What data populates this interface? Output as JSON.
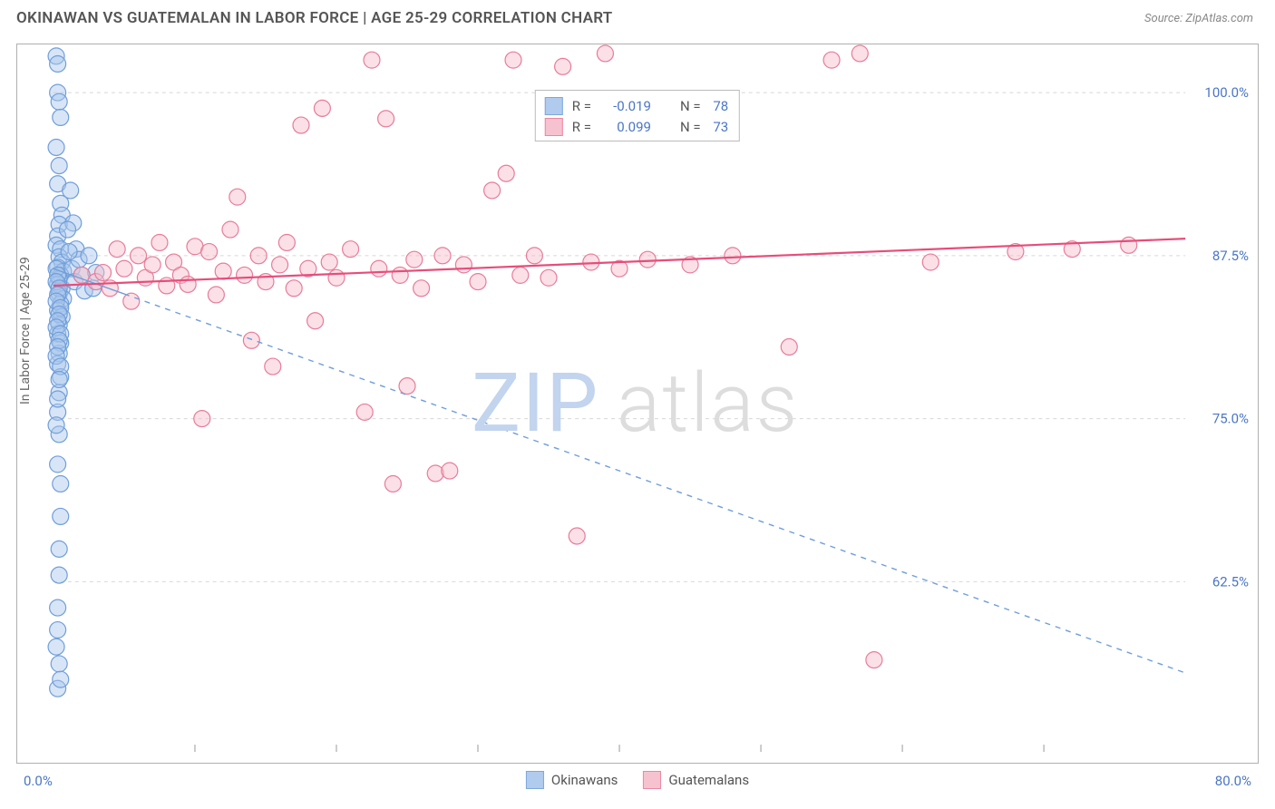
{
  "header": {
    "title": "OKINAWAN VS GUATEMALAN IN LABOR FORCE | AGE 25-29 CORRELATION CHART",
    "source": "Source: ZipAtlas.com"
  },
  "watermark": {
    "part1": "ZIP",
    "part2": "atlas"
  },
  "chart": {
    "type": "scatter",
    "y_axis_title": "In Labor Force | Age 25-29",
    "xlim": [
      0,
      80
    ],
    "ylim": [
      50,
      103
    ],
    "x_axis": {
      "label_min": "0.0%",
      "label_max": "80.0%",
      "tick_positions": [
        10,
        20,
        30,
        40,
        50,
        60,
        70
      ]
    },
    "y_axis": {
      "ticks": [
        {
          "v": 62.5,
          "label": "62.5%"
        },
        {
          "v": 75.0,
          "label": "75.0%"
        },
        {
          "v": 87.5,
          "label": "87.5%"
        },
        {
          "v": 100.0,
          "label": "100.0%"
        }
      ]
    },
    "grid_color": "#d8d8d8",
    "background_color": "#ffffff",
    "marker_radius": 9,
    "marker_stroke_width": 1.2,
    "series": [
      {
        "key": "okinawans",
        "name": "Okinawans",
        "fill": "#a8c6ec",
        "stroke": "#6f9edb",
        "fill_opacity": 0.45,
        "R": "-0.019",
        "N": "78",
        "trend": {
          "x1": 0,
          "y1": 86.5,
          "x2": 80,
          "y2": 55.5,
          "color": "#6f9edb",
          "dash": "6 6",
          "width": 1.4,
          "solid_until_x": 5
        },
        "points": [
          [
            0.2,
            102.8
          ],
          [
            0.3,
            102.2
          ],
          [
            0.3,
            100.0
          ],
          [
            0.4,
            99.3
          ],
          [
            0.5,
            98.1
          ],
          [
            0.2,
            95.8
          ],
          [
            0.4,
            94.4
          ],
          [
            0.3,
            93.0
          ],
          [
            0.5,
            91.5
          ],
          [
            0.6,
            90.6
          ],
          [
            0.4,
            89.9
          ],
          [
            0.3,
            89.0
          ],
          [
            0.2,
            88.3
          ],
          [
            0.5,
            88.0
          ],
          [
            0.4,
            87.4
          ],
          [
            0.6,
            87.0
          ],
          [
            0.3,
            86.6
          ],
          [
            0.7,
            86.3
          ],
          [
            0.5,
            86.0
          ],
          [
            0.4,
            85.7
          ],
          [
            0.3,
            85.3
          ],
          [
            0.6,
            85.0
          ],
          [
            0.4,
            84.6
          ],
          [
            0.7,
            84.2
          ],
          [
            0.5,
            83.8
          ],
          [
            0.3,
            83.3
          ],
          [
            0.6,
            82.8
          ],
          [
            0.4,
            82.2
          ],
          [
            0.3,
            81.5
          ],
          [
            0.5,
            80.8
          ],
          [
            0.4,
            80.0
          ],
          [
            0.3,
            79.2
          ],
          [
            0.5,
            78.2
          ],
          [
            0.4,
            77.0
          ],
          [
            0.3,
            75.5
          ],
          [
            0.4,
            73.8
          ],
          [
            0.3,
            71.5
          ],
          [
            0.5,
            67.5
          ],
          [
            0.4,
            63.0
          ],
          [
            0.3,
            58.8
          ],
          [
            0.4,
            56.2
          ],
          [
            0.3,
            54.3
          ],
          [
            1.2,
            92.5
          ],
          [
            1.4,
            90.0
          ],
          [
            1.6,
            88.0
          ],
          [
            1.3,
            86.5
          ],
          [
            1.5,
            85.5
          ],
          [
            1.8,
            87.2
          ],
          [
            2.0,
            86.0
          ],
          [
            2.2,
            84.8
          ],
          [
            2.5,
            87.5
          ],
          [
            2.8,
            85.0
          ],
          [
            3.0,
            86.2
          ],
          [
            0.2,
            86.5
          ],
          [
            0.3,
            86.0
          ],
          [
            0.2,
            85.5
          ],
          [
            0.4,
            85.0
          ],
          [
            0.3,
            84.5
          ],
          [
            0.2,
            84.0
          ],
          [
            0.5,
            83.5
          ],
          [
            0.4,
            83.0
          ],
          [
            0.3,
            82.5
          ],
          [
            0.2,
            82.0
          ],
          [
            0.5,
            81.5
          ],
          [
            0.4,
            81.0
          ],
          [
            0.3,
            80.5
          ],
          [
            0.2,
            79.8
          ],
          [
            0.5,
            79.0
          ],
          [
            0.4,
            78.0
          ],
          [
            0.3,
            76.5
          ],
          [
            0.2,
            74.5
          ],
          [
            0.5,
            70.0
          ],
          [
            0.4,
            65.0
          ],
          [
            0.3,
            60.5
          ],
          [
            0.2,
            57.5
          ],
          [
            0.5,
            55.0
          ],
          [
            1.0,
            89.5
          ],
          [
            1.1,
            87.8
          ]
        ]
      },
      {
        "key": "guatemalans",
        "name": "Guatemalans",
        "fill": "#f7bcca",
        "stroke": "#e87b9a",
        "fill_opacity": 0.45,
        "R": "0.099",
        "N": "73",
        "trend": {
          "x1": 0,
          "y1": 85.2,
          "x2": 80,
          "y2": 88.8,
          "color": "#e84c7a",
          "dash": "none",
          "width": 2.2
        },
        "points": [
          [
            2.0,
            86.0
          ],
          [
            3.0,
            85.5
          ],
          [
            3.5,
            86.2
          ],
          [
            4.0,
            85.0
          ],
          [
            4.5,
            88.0
          ],
          [
            5.0,
            86.5
          ],
          [
            5.5,
            84.0
          ],
          [
            6.0,
            87.5
          ],
          [
            6.5,
            85.8
          ],
          [
            7.0,
            86.8
          ],
          [
            7.5,
            88.5
          ],
          [
            8.0,
            85.2
          ],
          [
            8.5,
            87.0
          ],
          [
            9.0,
            86.0
          ],
          [
            9.5,
            85.3
          ],
          [
            10.0,
            88.2
          ],
          [
            10.5,
            75.0
          ],
          [
            11.0,
            87.8
          ],
          [
            11.5,
            84.5
          ],
          [
            12.0,
            86.3
          ],
          [
            12.5,
            89.5
          ],
          [
            13.0,
            92.0
          ],
          [
            13.5,
            86.0
          ],
          [
            14.0,
            81.0
          ],
          [
            14.5,
            87.5
          ],
          [
            15.0,
            85.5
          ],
          [
            15.5,
            79.0
          ],
          [
            16.0,
            86.8
          ],
          [
            16.5,
            88.5
          ],
          [
            17.0,
            85.0
          ],
          [
            17.5,
            97.5
          ],
          [
            18.0,
            86.5
          ],
          [
            18.5,
            82.5
          ],
          [
            19.0,
            98.8
          ],
          [
            19.5,
            87.0
          ],
          [
            20.0,
            85.8
          ],
          [
            21.0,
            88.0
          ],
          [
            22.0,
            75.5
          ],
          [
            22.5,
            102.5
          ],
          [
            23.0,
            86.5
          ],
          [
            23.5,
            98.0
          ],
          [
            24.0,
            70.0
          ],
          [
            24.5,
            86.0
          ],
          [
            25.0,
            77.5
          ],
          [
            25.5,
            87.2
          ],
          [
            26.0,
            85.0
          ],
          [
            27.0,
            70.8
          ],
          [
            27.5,
            87.5
          ],
          [
            28.0,
            71.0
          ],
          [
            29.0,
            86.8
          ],
          [
            30.0,
            85.5
          ],
          [
            31.0,
            92.5
          ],
          [
            32.0,
            93.8
          ],
          [
            32.5,
            102.5
          ],
          [
            33.0,
            86.0
          ],
          [
            34.0,
            87.5
          ],
          [
            35.0,
            85.8
          ],
          [
            36.0,
            102.0
          ],
          [
            37.0,
            66.0
          ],
          [
            38.0,
            87.0
          ],
          [
            39.0,
            103.0
          ],
          [
            40.0,
            86.5
          ],
          [
            42.0,
            87.2
          ],
          [
            45.0,
            86.8
          ],
          [
            48.0,
            87.5
          ],
          [
            52.0,
            80.5
          ],
          [
            55.0,
            102.5
          ],
          [
            57.0,
            103.0
          ],
          [
            58.0,
            56.5
          ],
          [
            62.0,
            87.0
          ],
          [
            68.0,
            87.8
          ],
          [
            72.0,
            88.0
          ],
          [
            76.0,
            88.3
          ]
        ]
      }
    ],
    "legend": {
      "r_label": "R =",
      "n_label": "N ="
    }
  },
  "bottom_x_labels": {
    "min": "0.0%",
    "max": "80.0%"
  }
}
